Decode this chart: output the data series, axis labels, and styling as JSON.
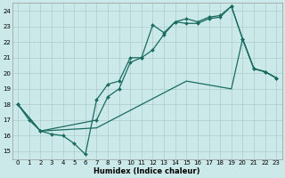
{
  "xlabel": "Humidex (Indice chaleur)",
  "bg_color": "#cce9ea",
  "grid_color": "#aacccc",
  "line_color": "#1a6b60",
  "xlim": [
    -0.5,
    23.5
  ],
  "ylim": [
    14.5,
    24.5
  ],
  "xticks": [
    0,
    1,
    2,
    3,
    4,
    5,
    6,
    7,
    8,
    9,
    10,
    11,
    12,
    13,
    14,
    15,
    16,
    17,
    18,
    19,
    20,
    21,
    22,
    23
  ],
  "yticks": [
    15,
    16,
    17,
    18,
    19,
    20,
    21,
    22,
    23,
    24
  ],
  "series1": [
    [
      0,
      18.0
    ],
    [
      1,
      17.0
    ],
    [
      2,
      16.3
    ],
    [
      3,
      16.1
    ],
    [
      4,
      16.0
    ],
    [
      5,
      15.5
    ],
    [
      6,
      14.8
    ],
    [
      7,
      18.3
    ],
    [
      8,
      19.3
    ],
    [
      9,
      19.5
    ],
    [
      10,
      21.0
    ],
    [
      11,
      21.0
    ],
    [
      12,
      21.5
    ],
    [
      13,
      22.5
    ],
    [
      14,
      23.3
    ],
    [
      15,
      23.2
    ],
    [
      16,
      23.2
    ],
    [
      17,
      23.5
    ],
    [
      18,
      23.6
    ],
    [
      19,
      24.3
    ],
    [
      20,
      22.2
    ],
    [
      21,
      20.3
    ],
    [
      22,
      20.1
    ],
    [
      23,
      19.7
    ]
  ],
  "series2": [
    [
      0,
      18.0
    ],
    [
      2,
      16.3
    ],
    [
      7,
      17.0
    ],
    [
      8,
      18.5
    ],
    [
      9,
      19.0
    ],
    [
      10,
      20.7
    ],
    [
      11,
      21.0
    ],
    [
      12,
      23.1
    ],
    [
      13,
      22.6
    ],
    [
      14,
      23.3
    ],
    [
      15,
      23.5
    ],
    [
      16,
      23.3
    ],
    [
      17,
      23.6
    ],
    [
      18,
      23.7
    ],
    [
      19,
      24.3
    ],
    [
      20,
      22.2
    ],
    [
      21,
      20.3
    ],
    [
      22,
      20.1
    ],
    [
      23,
      19.7
    ]
  ],
  "series3": [
    [
      0,
      18.0
    ],
    [
      2,
      16.3
    ],
    [
      7,
      16.5
    ],
    [
      11,
      18.0
    ],
    [
      15,
      19.5
    ],
    [
      19,
      19.0
    ],
    [
      20,
      22.2
    ],
    [
      21,
      20.3
    ],
    [
      22,
      20.1
    ],
    [
      23,
      19.7
    ]
  ]
}
